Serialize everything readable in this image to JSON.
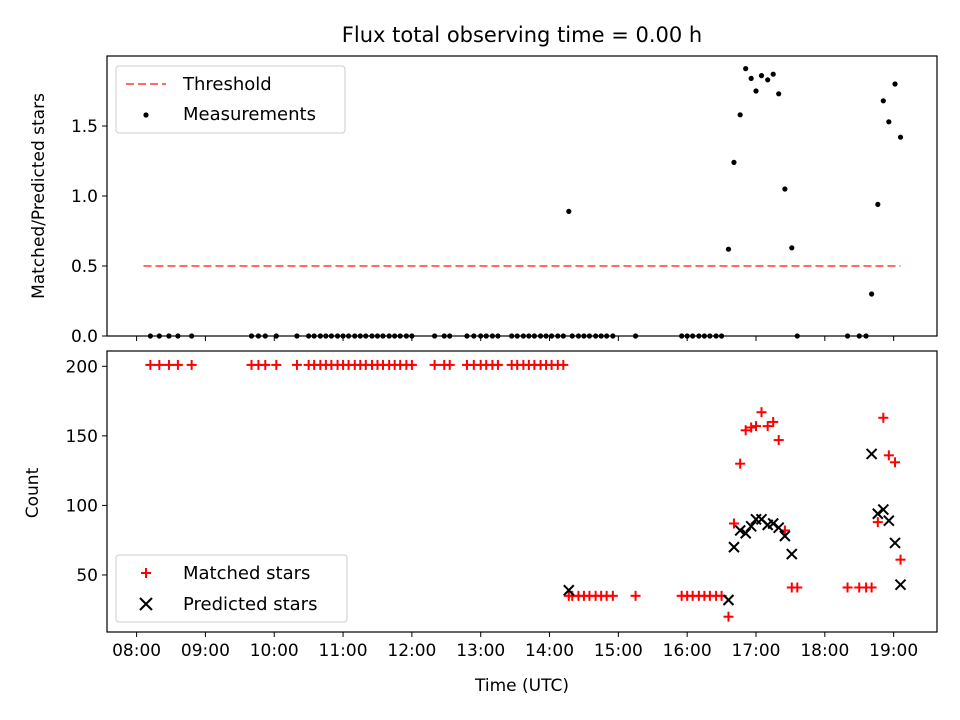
{
  "chart_data": {
    "title": "Flux total observing time = 0.00 h",
    "xlabel": "Time (UTC)",
    "x_tick_labels": [
      "08:00",
      "09:00",
      "10:00",
      "11:00",
      "12:00",
      "13:00",
      "14:00",
      "15:00",
      "16:00",
      "17:00",
      "18:00",
      "19:00"
    ],
    "x_ticks_hours": [
      8,
      9,
      10,
      11,
      12,
      13,
      14,
      15,
      16,
      17,
      18,
      19
    ],
    "xlim_hours": [
      7.57,
      19.63
    ],
    "panels": [
      {
        "id": "ratio",
        "type": "scatter",
        "ylabel": "Matched/Predicted stars",
        "ylim": [
          0,
          2.0
        ],
        "y_ticks": [
          0,
          0.5,
          1.0,
          1.5
        ],
        "y_tick_labels": [
          "0.0",
          "0.5",
          "1.0",
          "1.5"
        ],
        "legend_position": "upper left",
        "legend": [
          "Threshold",
          "Measurements"
        ],
        "threshold": {
          "name": "Threshold",
          "value": 0.5,
          "x_range": [
            8.1,
            19.1
          ],
          "color": "#ff6b6b"
        },
        "series": [
          {
            "name": "Measurements",
            "color": "#000000",
            "points": [
              [
                8.2,
                0
              ],
              [
                8.33,
                0
              ],
              [
                8.47,
                0
              ],
              [
                8.6,
                0
              ],
              [
                8.8,
                0
              ],
              [
                9.67,
                0
              ],
              [
                9.77,
                0
              ],
              [
                9.87,
                0
              ],
              [
                10.03,
                0
              ],
              [
                10.33,
                0
              ],
              [
                10.5,
                0
              ],
              [
                10.58,
                0
              ],
              [
                10.67,
                0
              ],
              [
                10.75,
                0
              ],
              [
                10.83,
                0
              ],
              [
                10.92,
                0
              ],
              [
                11.0,
                0
              ],
              [
                11.08,
                0
              ],
              [
                11.17,
                0
              ],
              [
                11.25,
                0
              ],
              [
                11.33,
                0
              ],
              [
                11.42,
                0
              ],
              [
                11.5,
                0
              ],
              [
                11.58,
                0
              ],
              [
                11.67,
                0
              ],
              [
                11.75,
                0
              ],
              [
                11.83,
                0
              ],
              [
                11.92,
                0
              ],
              [
                12.0,
                0
              ],
              [
                12.33,
                0
              ],
              [
                12.47,
                0
              ],
              [
                12.55,
                0
              ],
              [
                12.8,
                0
              ],
              [
                12.9,
                0
              ],
              [
                13.0,
                0
              ],
              [
                13.08,
                0
              ],
              [
                13.17,
                0
              ],
              [
                13.25,
                0
              ],
              [
                13.45,
                0
              ],
              [
                13.53,
                0
              ],
              [
                13.62,
                0
              ],
              [
                13.7,
                0
              ],
              [
                13.78,
                0
              ],
              [
                13.87,
                0
              ],
              [
                13.95,
                0
              ],
              [
                14.03,
                0
              ],
              [
                14.12,
                0
              ],
              [
                14.2,
                0
              ],
              [
                14.33,
                0
              ],
              [
                14.42,
                0
              ],
              [
                14.5,
                0
              ],
              [
                14.58,
                0
              ],
              [
                14.67,
                0
              ],
              [
                14.75,
                0
              ],
              [
                14.83,
                0
              ],
              [
                14.92,
                0
              ],
              [
                15.25,
                0
              ],
              [
                15.92,
                0
              ],
              [
                16.0,
                0
              ],
              [
                16.08,
                0
              ],
              [
                16.17,
                0
              ],
              [
                16.25,
                0
              ],
              [
                16.33,
                0
              ],
              [
                16.42,
                0
              ],
              [
                16.5,
                0
              ],
              [
                14.28,
                0.89
              ],
              [
                16.6,
                0.62
              ],
              [
                16.68,
                1.24
              ],
              [
                16.77,
                1.58
              ],
              [
                16.85,
                1.91
              ],
              [
                16.93,
                1.84
              ],
              [
                17.0,
                1.75
              ],
              [
                17.08,
                1.86
              ],
              [
                17.17,
                1.83
              ],
              [
                17.25,
                1.87
              ],
              [
                17.33,
                1.73
              ],
              [
                17.42,
                1.05
              ],
              [
                17.52,
                0.63
              ],
              [
                17.6,
                0
              ],
              [
                18.33,
                0
              ],
              [
                18.5,
                0
              ],
              [
                18.6,
                0
              ],
              [
                18.68,
                0.3
              ],
              [
                18.77,
                0.94
              ],
              [
                18.85,
                1.68
              ],
              [
                18.93,
                1.53
              ],
              [
                19.02,
                1.8
              ],
              [
                19.1,
                1.42
              ]
            ]
          }
        ]
      },
      {
        "id": "counts",
        "type": "scatter",
        "ylabel": "Count",
        "ylim": [
          9,
          211
        ],
        "y_ticks": [
          50,
          100,
          150,
          200
        ],
        "y_tick_labels": [
          "50",
          "100",
          "150",
          "200"
        ],
        "legend_position": "lower left",
        "legend": [
          "Matched stars",
          "Predicted stars"
        ],
        "series": [
          {
            "name": "Matched stars",
            "marker": "plus",
            "color": "#ff0000",
            "points": [
              [
                8.2,
                201
              ],
              [
                8.33,
                201
              ],
              [
                8.47,
                201
              ],
              [
                8.6,
                201
              ],
              [
                8.8,
                201
              ],
              [
                9.67,
                201
              ],
              [
                9.77,
                201
              ],
              [
                9.87,
                201
              ],
              [
                10.03,
                201
              ],
              [
                10.33,
                201
              ],
              [
                10.5,
                201
              ],
              [
                10.58,
                201
              ],
              [
                10.67,
                201
              ],
              [
                10.75,
                201
              ],
              [
                10.83,
                201
              ],
              [
                10.92,
                201
              ],
              [
                11.0,
                201
              ],
              [
                11.08,
                201
              ],
              [
                11.17,
                201
              ],
              [
                11.25,
                201
              ],
              [
                11.33,
                201
              ],
              [
                11.42,
                201
              ],
              [
                11.5,
                201
              ],
              [
                11.58,
                201
              ],
              [
                11.67,
                201
              ],
              [
                11.75,
                201
              ],
              [
                11.83,
                201
              ],
              [
                11.92,
                201
              ],
              [
                12.0,
                201
              ],
              [
                12.33,
                201
              ],
              [
                12.47,
                201
              ],
              [
                12.55,
                201
              ],
              [
                12.8,
                201
              ],
              [
                12.9,
                201
              ],
              [
                13.0,
                201
              ],
              [
                13.08,
                201
              ],
              [
                13.17,
                201
              ],
              [
                13.25,
                201
              ],
              [
                13.45,
                201
              ],
              [
                13.53,
                201
              ],
              [
                13.62,
                201
              ],
              [
                13.7,
                201
              ],
              [
                13.78,
                201
              ],
              [
                13.87,
                201
              ],
              [
                13.95,
                201
              ],
              [
                14.03,
                201
              ],
              [
                14.12,
                201
              ],
              [
                14.2,
                201
              ],
              [
                14.28,
                35
              ],
              [
                14.33,
                35
              ],
              [
                14.42,
                35
              ],
              [
                14.5,
                35
              ],
              [
                14.58,
                35
              ],
              [
                14.67,
                35
              ],
              [
                14.75,
                35
              ],
              [
                14.83,
                35
              ],
              [
                14.92,
                35
              ],
              [
                15.25,
                35
              ],
              [
                15.92,
                35
              ],
              [
                16.0,
                35
              ],
              [
                16.08,
                35
              ],
              [
                16.17,
                35
              ],
              [
                16.25,
                35
              ],
              [
                16.33,
                35
              ],
              [
                16.42,
                35
              ],
              [
                16.5,
                35
              ],
              [
                16.6,
                20
              ],
              [
                16.68,
                87
              ],
              [
                16.77,
                130
              ],
              [
                16.85,
                154
              ],
              [
                16.93,
                156
              ],
              [
                17.0,
                157
              ],
              [
                17.08,
                167
              ],
              [
                17.17,
                157
              ],
              [
                17.25,
                160
              ],
              [
                17.33,
                147
              ],
              [
                17.42,
                82
              ],
              [
                17.52,
                41
              ],
              [
                17.6,
                41
              ],
              [
                18.33,
                41
              ],
              [
                18.5,
                41
              ],
              [
                18.6,
                41
              ],
              [
                18.68,
                41
              ],
              [
                18.77,
                88
              ],
              [
                18.85,
                163
              ],
              [
                18.93,
                136
              ],
              [
                19.02,
                131
              ],
              [
                19.1,
                61
              ]
            ]
          },
          {
            "name": "Predicted stars",
            "marker": "x",
            "color": "#000000",
            "points": [
              [
                14.28,
                39
              ],
              [
                16.6,
                32
              ],
              [
                16.68,
                70
              ],
              [
                16.77,
                82
              ],
              [
                16.85,
                80
              ],
              [
                16.93,
                85
              ],
              [
                17.0,
                90
              ],
              [
                17.08,
                90
              ],
              [
                17.17,
                86
              ],
              [
                17.25,
                87
              ],
              [
                17.33,
                84
              ],
              [
                17.42,
                78
              ],
              [
                17.52,
                65
              ],
              [
                18.68,
                137
              ],
              [
                18.77,
                94
              ],
              [
                18.85,
                97
              ],
              [
                18.93,
                89
              ],
              [
                19.02,
                73
              ],
              [
                19.1,
                43
              ]
            ]
          }
        ]
      }
    ]
  }
}
